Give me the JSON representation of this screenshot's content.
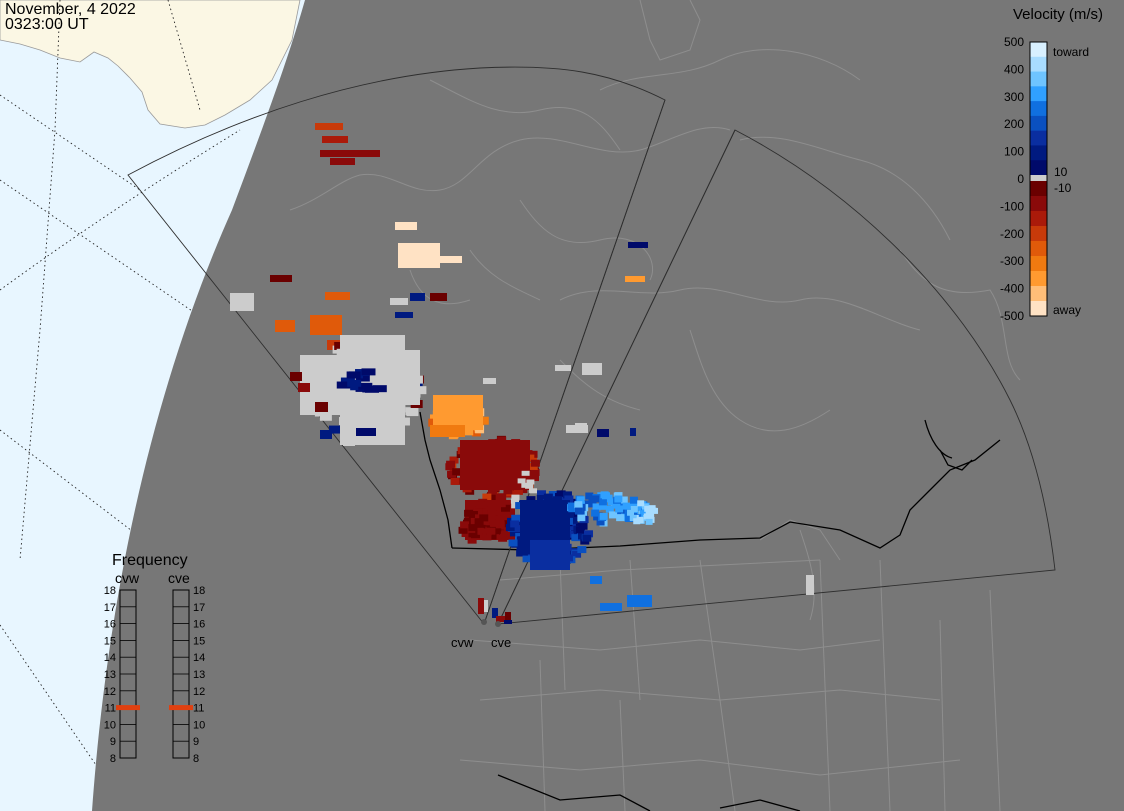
{
  "header": {
    "date": "November, 4 2022",
    "time": "0323:00 UT"
  },
  "velocity_scale": {
    "title": "Velocity (m/s)",
    "tick_labels": [
      "500",
      "400",
      "300",
      "200",
      "100",
      "0",
      "-100",
      "-200",
      "-300",
      "-400",
      "-500"
    ],
    "ground_labels": [
      "10",
      "-10"
    ],
    "end_labels": [
      "toward",
      "away"
    ],
    "toward_colors": [
      "#d8f0ff",
      "#a8dcff",
      "#6ec4ff",
      "#30a0ff",
      "#1070e0",
      "#0a50c0",
      "#0a2ea0",
      "#001a80",
      "#000a6a"
    ],
    "away_colors": [
      "#6a0000",
      "#8a0a0a",
      "#aa1a0a",
      "#c83a0a",
      "#e05a0a",
      "#f07a10",
      "#ff9a30",
      "#ffbe78",
      "#ffe2c4"
    ],
    "ground_scatter_color": "#cccccc"
  },
  "frequency_panel": {
    "title": "Frequency",
    "radars": [
      {
        "code": "cvw",
        "frequency_mhz": 11
      },
      {
        "code": "cve",
        "frequency_mhz": 11
      }
    ],
    "scale_values": [
      "18",
      "17",
      "16",
      "15",
      "14",
      "13",
      "12",
      "11",
      "10",
      "9",
      "8"
    ],
    "indicator_color": "#e04010"
  },
  "map": {
    "radar_site_labels": [
      "cvw",
      "cve"
    ],
    "colors": {
      "night": "#777777",
      "day_ocean": "#e8f6ff",
      "day_land": "#fbf7e4",
      "boundaries": "#8e8e8e",
      "borders": "#000000",
      "fov_outline": "#3a3a3a"
    }
  }
}
